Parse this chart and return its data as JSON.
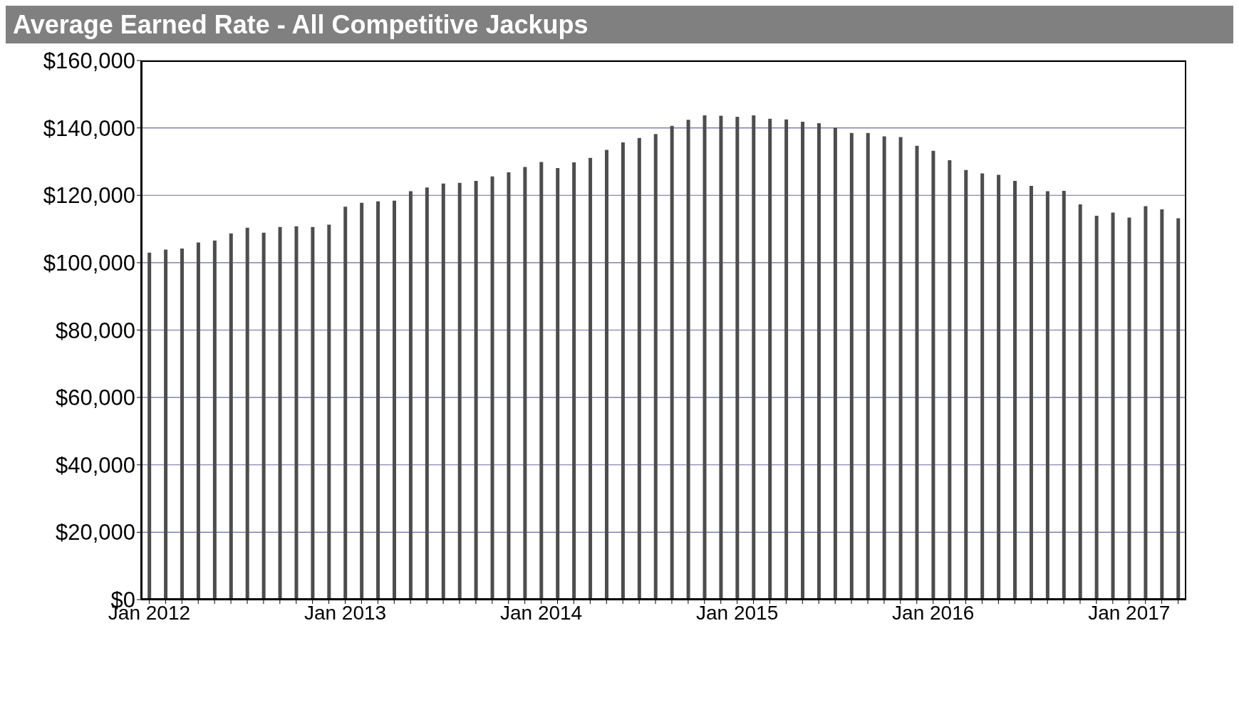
{
  "chart_data": {
    "type": "bar",
    "title": "Average Earned Rate - All Competitive Jackups",
    "categories": [
      "Jan 2012",
      null,
      null,
      null,
      null,
      null,
      null,
      null,
      null,
      null,
      null,
      null,
      "Jan 2013",
      null,
      null,
      null,
      null,
      null,
      null,
      null,
      null,
      null,
      null,
      null,
      "Jan 2014",
      null,
      null,
      null,
      null,
      null,
      null,
      null,
      null,
      null,
      null,
      null,
      "Jan 2015",
      null,
      null,
      null,
      null,
      null,
      null,
      null,
      null,
      null,
      null,
      null,
      "Jan 2016",
      null,
      null,
      null,
      null,
      null,
      null,
      null,
      null,
      null,
      null,
      null,
      "Jan 2017",
      null,
      null,
      null
    ],
    "values": [
      103000,
      103900,
      104200,
      106000,
      106600,
      108700,
      110400,
      108900,
      110600,
      110800,
      110600,
      111300,
      116600,
      117800,
      118200,
      118400,
      121200,
      122300,
      123500,
      123700,
      124300,
      125600,
      126800,
      128400,
      129900,
      128100,
      129800,
      131100,
      133500,
      135700,
      137000,
      138200,
      140600,
      142400,
      143700,
      143600,
      143300,
      143700,
      142700,
      142500,
      141800,
      141400,
      140100,
      138500,
      138500,
      137500,
      137300,
      134700,
      133200,
      130400,
      127500,
      126500,
      126100,
      124300,
      122800,
      121200,
      121300,
      117300,
      113900,
      114900,
      113400,
      116800,
      115800,
      113200
    ],
    "color": "#4d4d4d",
    "ylim": [
      0,
      160000
    ],
    "yticks": [
      {
        "value": 0,
        "label": "$0"
      },
      {
        "value": 20000,
        "label": "$20,000"
      },
      {
        "value": 40000,
        "label": "$40,000"
      },
      {
        "value": 60000,
        "label": "$60,000"
      },
      {
        "value": 80000,
        "label": "$80,000"
      },
      {
        "value": 100000,
        "label": "$100,000"
      },
      {
        "value": 120000,
        "label": "$120,000"
      },
      {
        "value": 140000,
        "label": "$140,000"
      },
      {
        "value": 160000,
        "label": "$160,000"
      }
    ],
    "grid": "y"
  }
}
